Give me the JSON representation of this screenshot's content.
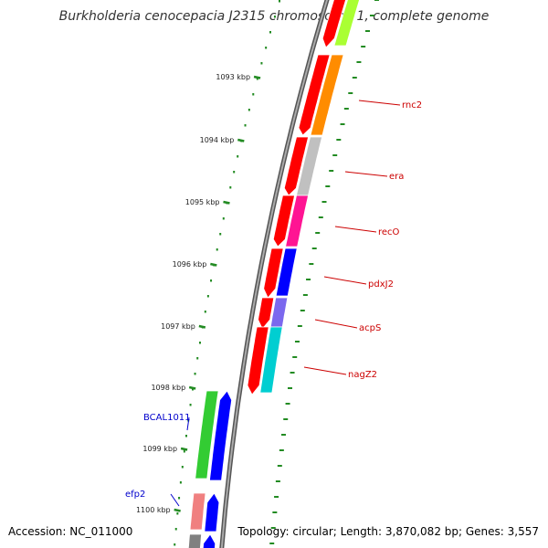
{
  "title": "Burkholderia cenocepacia J2315 chromosome 1, complete genome",
  "footer": {
    "accession": "Accession: NC_011000",
    "summary": "Topology: circular; Length: 3,870,082 bp; Genes: 3,557"
  },
  "colors": {
    "forward_strand": "#ff0000",
    "reverse_strand": "#0000ff",
    "forward_label": "#cc0000",
    "reverse_label": "#0000cc",
    "ruler_ticks": "#228B22",
    "backbone": "#808080"
  },
  "scale": {
    "ticks": [
      {
        "position_kbp": 1093,
        "label": "1093 kbp"
      },
      {
        "position_kbp": 1094,
        "label": "1094 kbp"
      },
      {
        "position_kbp": 1095,
        "label": "1095 kbp"
      },
      {
        "position_kbp": 1096,
        "label": "1096 kbp"
      },
      {
        "position_kbp": 1097,
        "label": "1097 kbp"
      },
      {
        "position_kbp": 1098,
        "label": "1098 kbp"
      },
      {
        "position_kbp": 1099,
        "label": "1099 kbp"
      },
      {
        "position_kbp": 1100,
        "label": "1100 kbp"
      }
    ]
  },
  "genes": [
    {
      "label": "",
      "strand": "forward",
      "cog_color": "#aaff33"
    },
    {
      "label": "rnc2",
      "strand": "forward",
      "cog_color": "#ff8c00"
    },
    {
      "label": "era",
      "strand": "forward",
      "cog_color": "#c0c0c0"
    },
    {
      "label": "recO",
      "strand": "forward",
      "cog_color": "#ff1493"
    },
    {
      "label": "pdxJ2",
      "strand": "forward",
      "cog_color": "#0000ff"
    },
    {
      "label": "acpS",
      "strand": "forward",
      "cog_color": "#7b68ee"
    },
    {
      "label": "nagZ2",
      "strand": "forward",
      "cog_color": "#00ced1"
    },
    {
      "label": "BCAL1011",
      "strand": "reverse",
      "cog_color": "#33cc33"
    },
    {
      "label": "efp2",
      "strand": "reverse",
      "cog_color": "#f08080"
    },
    {
      "label": "",
      "strand": "reverse",
      "cog_color": "#808080"
    }
  ]
}
